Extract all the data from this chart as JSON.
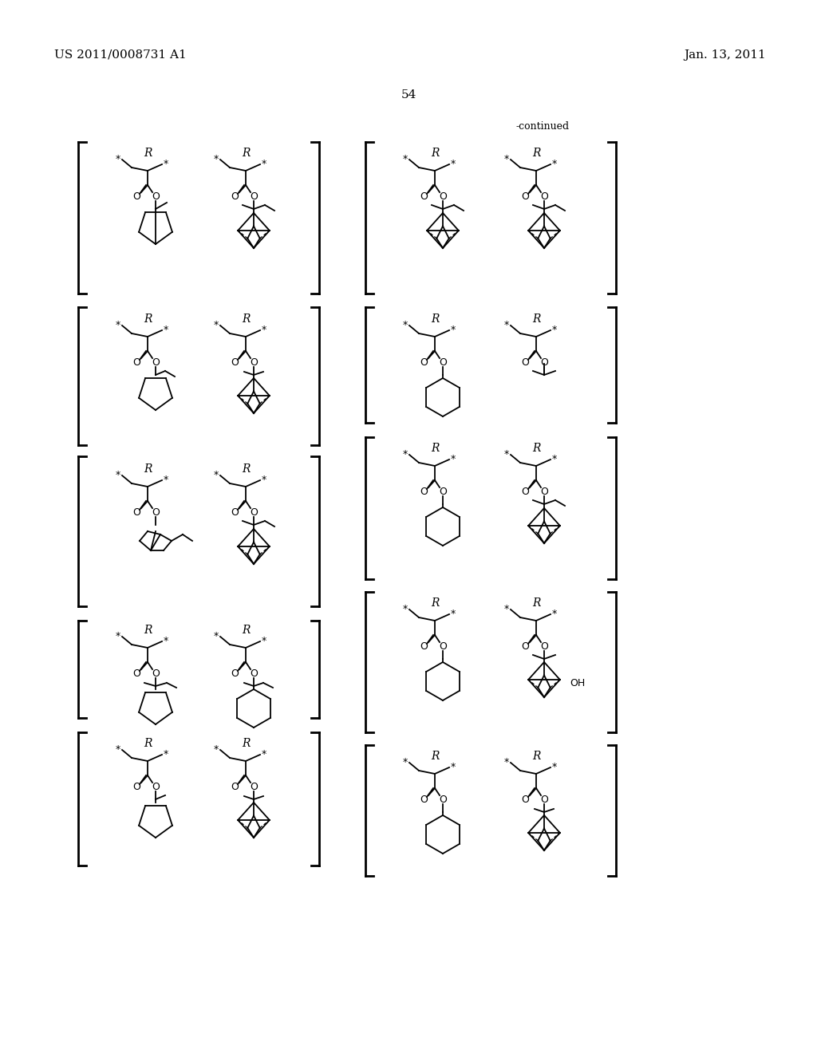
{
  "background_color": "#ffffff",
  "header_left": "US 2011/0008731 A1",
  "header_right": "Jan. 13, 2011",
  "page_number": "54",
  "continued_label": "-continued",
  "figsize": [
    10.24,
    13.2
  ],
  "dpi": 100,
  "lw": 1.3,
  "fs_header": 11,
  "fs_label": 9,
  "fs_star": 9,
  "fs_R": 10
}
